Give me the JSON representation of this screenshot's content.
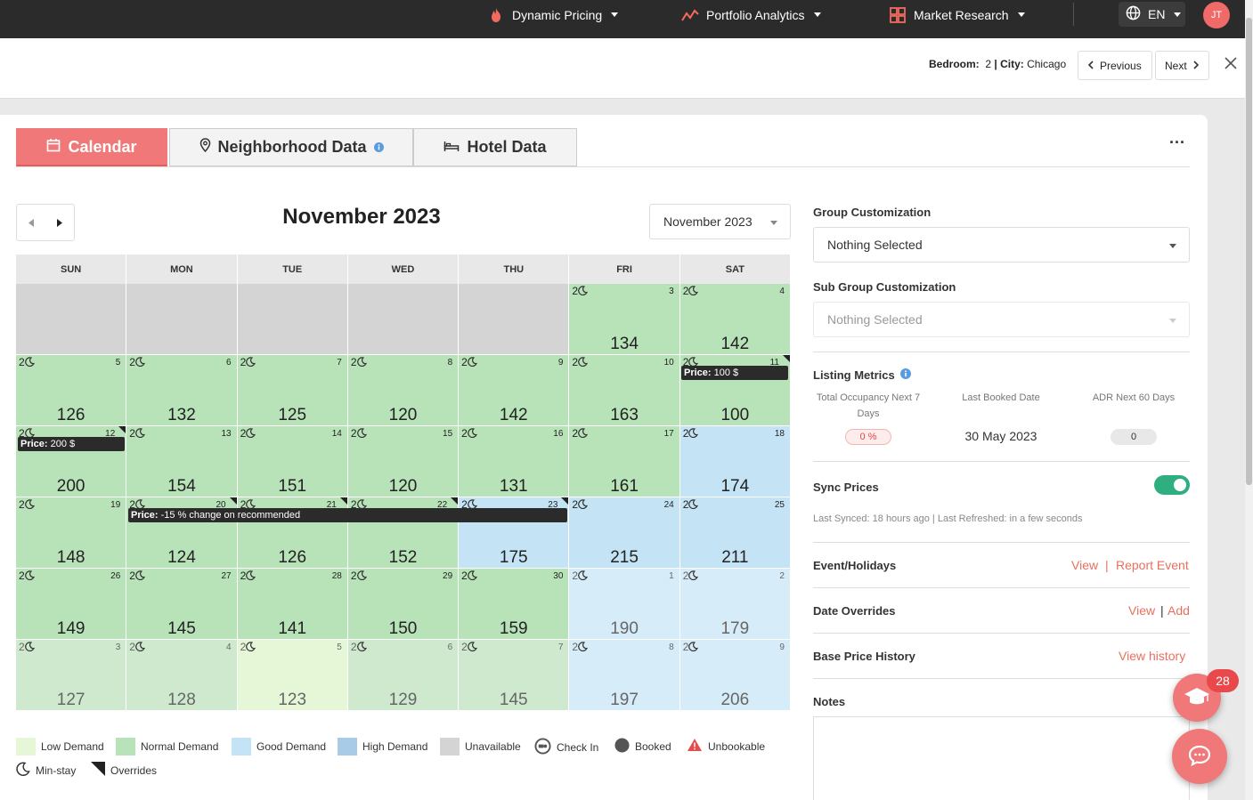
{
  "nav": {
    "items": [
      {
        "label": "Dynamic Pricing",
        "icon": "flame-icon"
      },
      {
        "label": "Portfolio Analytics",
        "icon": "chart-line-icon"
      },
      {
        "label": "Market Research",
        "icon": "grid-icon"
      }
    ],
    "language": "EN",
    "avatar_initials": "JT"
  },
  "info": {
    "bedroom_label": "Bedroom:",
    "bedroom_value": "2",
    "separator": "|",
    "city_label": "City:",
    "city_value": "Chicago",
    "prev_label": "Previous",
    "next_label": "Next"
  },
  "tabs": [
    {
      "label": "Calendar",
      "active": true
    },
    {
      "label": "Neighborhood Data",
      "active": false
    },
    {
      "label": "Hotel Data",
      "active": false
    }
  ],
  "more_label": "...",
  "calendar": {
    "title": "November 2023",
    "month_select": "November 2023",
    "days_of_week": [
      "SUN",
      "MON",
      "TUE",
      "WED",
      "THU",
      "FRI",
      "SAT"
    ],
    "cells": [
      {
        "state": "unavail"
      },
      {
        "state": "unavail"
      },
      {
        "state": "unavail"
      },
      {
        "state": "unavail"
      },
      {
        "state": "unavail"
      },
      {
        "day": "3",
        "price": "134",
        "ms": "2",
        "state": "normal"
      },
      {
        "day": "4",
        "price": "142",
        "ms": "2",
        "state": "normal"
      },
      {
        "day": "5",
        "price": "126",
        "ms": "2",
        "state": "normal"
      },
      {
        "day": "6",
        "price": "132",
        "ms": "2",
        "state": "normal"
      },
      {
        "day": "7",
        "price": "125",
        "ms": "2",
        "state": "normal"
      },
      {
        "day": "8",
        "price": "120",
        "ms": "2",
        "state": "normal"
      },
      {
        "day": "9",
        "price": "142",
        "ms": "2",
        "state": "normal"
      },
      {
        "day": "10",
        "price": "163",
        "ms": "2",
        "state": "normal"
      },
      {
        "day": "11",
        "price": "100",
        "ms": "2",
        "state": "normal",
        "override": true
      },
      {
        "day": "12",
        "price": "200",
        "ms": "2",
        "state": "normal",
        "override": true
      },
      {
        "day": "13",
        "price": "154",
        "ms": "2",
        "state": "normal"
      },
      {
        "day": "14",
        "price": "151",
        "ms": "2",
        "state": "normal"
      },
      {
        "day": "15",
        "price": "120",
        "ms": "2",
        "state": "normal"
      },
      {
        "day": "16",
        "price": "131",
        "ms": "2",
        "state": "normal"
      },
      {
        "day": "17",
        "price": "161",
        "ms": "2",
        "state": "normal"
      },
      {
        "day": "18",
        "price": "174",
        "ms": "2",
        "state": "good"
      },
      {
        "day": "19",
        "price": "148",
        "ms": "2",
        "state": "normal"
      },
      {
        "day": "20",
        "price": "124",
        "ms": "2",
        "state": "normal",
        "override": true
      },
      {
        "day": "21",
        "price": "126",
        "ms": "2",
        "state": "normal",
        "override": true
      },
      {
        "day": "22",
        "price": "152",
        "ms": "2",
        "state": "normal",
        "override": true
      },
      {
        "day": "23",
        "price": "175",
        "ms": "2",
        "state": "good",
        "override": true
      },
      {
        "day": "24",
        "price": "215",
        "ms": "2",
        "state": "good"
      },
      {
        "day": "25",
        "price": "211",
        "ms": "2",
        "state": "good"
      },
      {
        "day": "26",
        "price": "149",
        "ms": "2",
        "state": "normal"
      },
      {
        "day": "27",
        "price": "145",
        "ms": "2",
        "state": "normal"
      },
      {
        "day": "28",
        "price": "141",
        "ms": "2",
        "state": "normal"
      },
      {
        "day": "29",
        "price": "150",
        "ms": "2",
        "state": "normal"
      },
      {
        "day": "30",
        "price": "159",
        "ms": "2",
        "state": "normal"
      },
      {
        "day": "1",
        "price": "190",
        "ms": "2",
        "state": "good-f"
      },
      {
        "day": "2",
        "price": "179",
        "ms": "2",
        "state": "good-f"
      },
      {
        "day": "3",
        "price": "127",
        "ms": "2",
        "state": "normal-f"
      },
      {
        "day": "4",
        "price": "128",
        "ms": "2",
        "state": "normal-f"
      },
      {
        "day": "5",
        "price": "123",
        "ms": "2",
        "state": "low-f"
      },
      {
        "day": "6",
        "price": "129",
        "ms": "2",
        "state": "normal-f"
      },
      {
        "day": "7",
        "price": "145",
        "ms": "2",
        "state": "normal-f"
      },
      {
        "day": "8",
        "price": "197",
        "ms": "2",
        "state": "good-f"
      },
      {
        "day": "9",
        "price": "206",
        "ms": "2",
        "state": "good-f"
      }
    ],
    "price_tags": [
      {
        "label": "Price:",
        "value": "100 $"
      },
      {
        "label": "Price:",
        "value": "200 $"
      },
      {
        "label": "Price:",
        "value": "-15 % change on recommended"
      }
    ]
  },
  "legend": [
    {
      "label": "Low Demand",
      "color": "#e6f7d8"
    },
    {
      "label": "Normal Demand",
      "color": "#b8e2b8"
    },
    {
      "label": "Good Demand",
      "color": "#c4e4f5"
    },
    {
      "label": "High Demand",
      "color": "#a8cbe8"
    },
    {
      "label": "Unavailable",
      "color": "#d4d4d4"
    },
    {
      "label": "Check In",
      "icon": "check-in-icon"
    },
    {
      "label": "Booked",
      "icon": "booked-icon"
    },
    {
      "label": "Unbookable",
      "icon": "warning-icon"
    },
    {
      "label": "Min-stay",
      "icon": "moon-icon"
    },
    {
      "label": "Overrides",
      "icon": "override-icon"
    }
  ],
  "right": {
    "group_label": "Group Customization",
    "group_value": "Nothing Selected",
    "subgroup_label": "Sub Group Customization",
    "subgroup_value": "Nothing Selected",
    "metrics_label": "Listing Metrics",
    "metrics": [
      {
        "header": "Total Occupancy Next 7 Days",
        "value": "0 %"
      },
      {
        "header": "Last Booked Date",
        "value": "30 May 2023"
      },
      {
        "header": "ADR Next 60 Days",
        "value": "0"
      }
    ],
    "sync_label": "Sync Prices",
    "sync_on": true,
    "sync_info": "Last Synced: 18 hours ago | Last Refreshed: in a few seconds",
    "events_label": "Event/Holidays",
    "events_view": "View",
    "events_sep": "|",
    "events_report": "Report Event",
    "overrides_label": "Date Overrides",
    "overrides_view": "View",
    "overrides_sep": "|",
    "overrides_add": "Add",
    "history_label": "Base Price History",
    "history_link": "View history",
    "notes_label": "Notes"
  },
  "badge_count": "28",
  "colors": {
    "accent": "#f07878",
    "link": "#e8705f",
    "toggle": "#2faf7f"
  }
}
